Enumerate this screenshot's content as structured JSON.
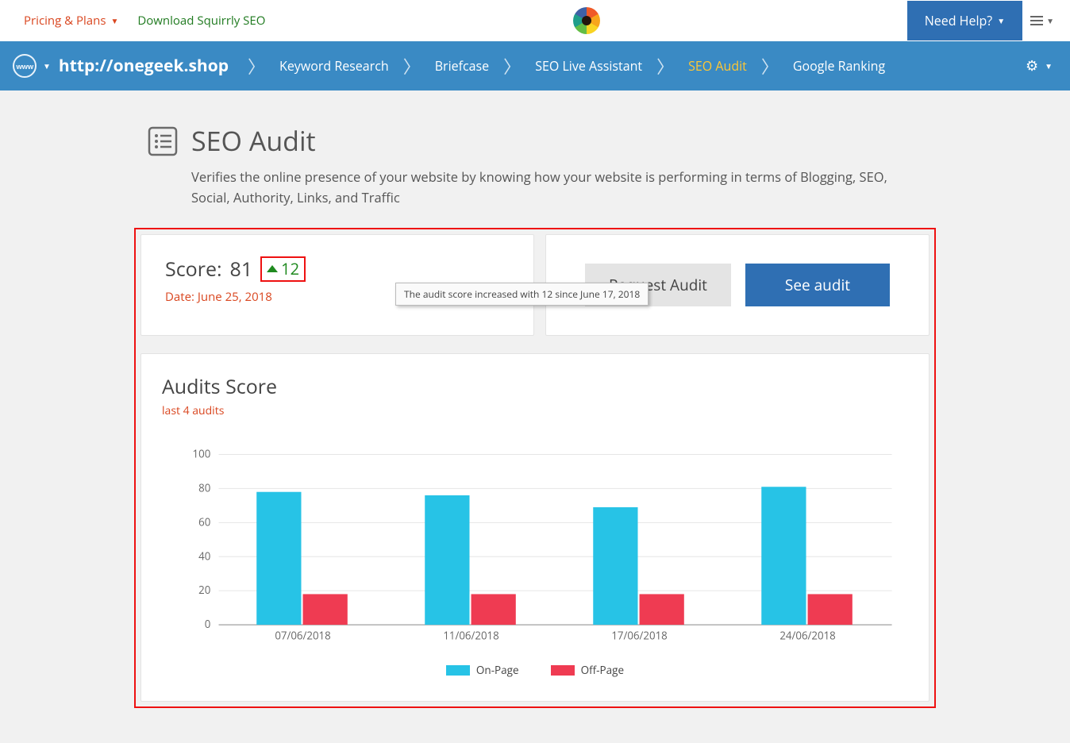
{
  "topbar": {
    "pricing_label": "Pricing & Plans",
    "download_label": "Download Squirrly SEO",
    "need_help_label": "Need Help?"
  },
  "nav": {
    "site_url": "http://onegeek.shop",
    "items": [
      "Keyword Research",
      "Briefcase",
      "SEO Live Assistant",
      "SEO Audit",
      "Google Ranking"
    ],
    "active_index": 3
  },
  "page": {
    "title": "SEO Audit",
    "description": "Verifies the online presence of your website by knowing how your website is performing in terms of Blogging, SEO, Social, Authority, Links, and Traffic"
  },
  "score_panel": {
    "score_label_prefix": "Score:",
    "score_value": "81",
    "delta_value": "12",
    "date_prefix": "Date:",
    "date_value": "June 25, 2018",
    "tooltip_text": "The audit score increased with 12 since June 17, 2018",
    "request_label": "Request Audit",
    "see_label": "See audit"
  },
  "chart": {
    "title": "Audits Score",
    "subtitle": "last 4 audits",
    "type": "bar-grouped",
    "ylim": [
      0,
      100
    ],
    "ytick_step": 20,
    "categories": [
      "07/06/2018",
      "11/06/2018",
      "17/06/2018",
      "24/06/2018"
    ],
    "series": [
      {
        "name": "On-Page",
        "color": "#27c3e6",
        "values": [
          78,
          76,
          69,
          81
        ]
      },
      {
        "name": "Off-Page",
        "color": "#ef3b52",
        "values": [
          18,
          18,
          18,
          18
        ]
      }
    ],
    "axis_color": "#666666",
    "grid_color": "#e6e6e6",
    "background_color": "#ffffff",
    "bar_group_width": 0.55,
    "label_fontsize": 13
  },
  "colors": {
    "nav_bg": "#3a8ac4",
    "accent_orange": "#d9451e",
    "accent_green_text": "#1f7a1f",
    "btn_blue": "#2f6fb3",
    "annot_red": "#ee1111"
  }
}
